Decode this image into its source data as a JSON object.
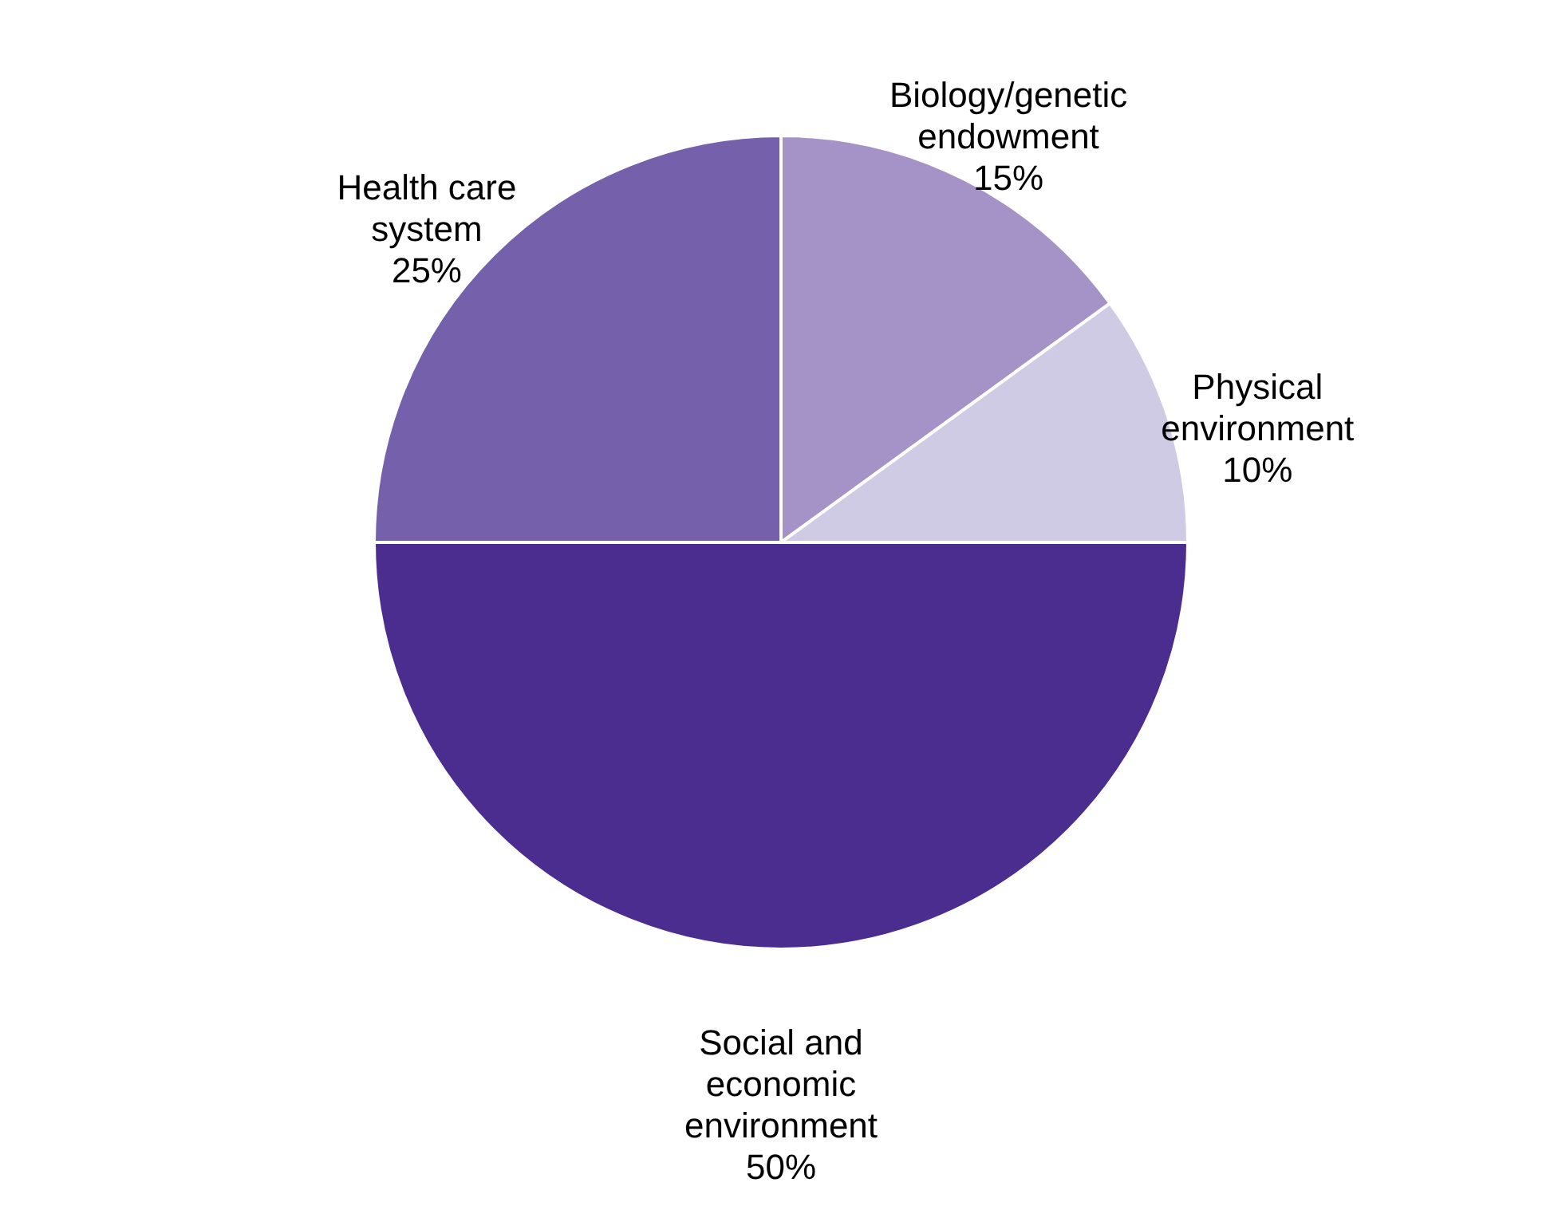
{
  "chart_data": {
    "type": "pie",
    "categories": [
      "Biology/genetic\nendowment",
      "Physical\nenvironment",
      "Social and\neconomic\nenvironment",
      "Health care\nsystem"
    ],
    "values": [
      15,
      10,
      50,
      25
    ],
    "value_labels": [
      "15%",
      "10%",
      "50%",
      "25%"
    ],
    "colors": [
      "#a593c7",
      "#d0cbe4",
      "#4b2c8f",
      "#7560ab"
    ]
  }
}
